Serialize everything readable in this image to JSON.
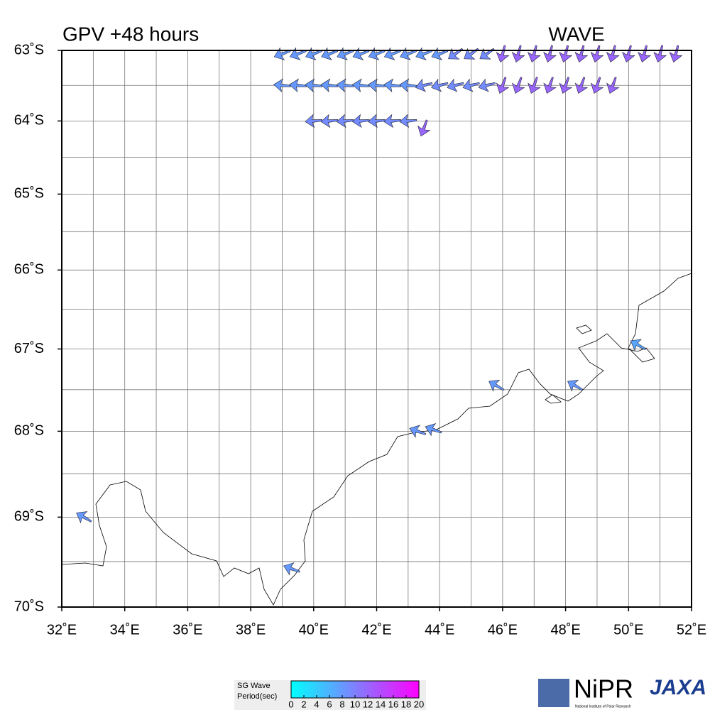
{
  "header": {
    "title": "GPV +48 hours",
    "label": "WAVE"
  },
  "map": {
    "xlim": [
      32,
      52
    ],
    "ylim": [
      -70,
      -63
    ],
    "xticks": [
      {
        "value": 32,
        "label": "32˚E"
      },
      {
        "value": 34,
        "label": "34˚E"
      },
      {
        "value": 36,
        "label": "36˚E"
      },
      {
        "value": 38,
        "label": "38˚E"
      },
      {
        "value": 40,
        "label": "40˚E"
      },
      {
        "value": 42,
        "label": "42˚E"
      },
      {
        "value": 44,
        "label": "44˚E"
      },
      {
        "value": 46,
        "label": "46˚E"
      },
      {
        "value": 48,
        "label": "48˚E"
      },
      {
        "value": 50,
        "label": "50˚E"
      },
      {
        "value": 52,
        "label": "52˚E"
      }
    ],
    "yticks": [
      {
        "value": -63,
        "label": "63˚S"
      },
      {
        "value": -64,
        "label": "64˚S"
      },
      {
        "value": -65,
        "label": "65˚S"
      },
      {
        "value": -66,
        "label": "66˚S"
      },
      {
        "value": -67,
        "label": "67˚S"
      },
      {
        "value": -68,
        "label": "68˚S"
      },
      {
        "value": -69,
        "label": "69˚S"
      },
      {
        "value": -70,
        "label": "70˚S"
      }
    ],
    "xgrid": [
      33,
      34,
      35,
      36,
      37,
      38,
      39,
      40,
      41,
      42,
      43,
      44,
      45,
      46,
      47,
      48,
      49,
      50,
      51
    ],
    "ygrid": [
      -69.5,
      -69,
      -68.5,
      -68,
      -67.5,
      -67,
      -66.5,
      -66,
      -65.5,
      -65,
      -64.5,
      -64,
      -63.5
    ],
    "arrows": [
      {
        "lon": 39.0,
        "lat": -63.05,
        "dir": 250,
        "period": 8
      },
      {
        "lon": 39.5,
        "lat": -63.05,
        "dir": 250,
        "period": 8
      },
      {
        "lon": 40.0,
        "lat": -63.05,
        "dir": 250,
        "period": 8
      },
      {
        "lon": 40.5,
        "lat": -63.05,
        "dir": 250,
        "period": 8
      },
      {
        "lon": 41.0,
        "lat": -63.05,
        "dir": 250,
        "period": 8
      },
      {
        "lon": 41.5,
        "lat": -63.05,
        "dir": 250,
        "period": 8
      },
      {
        "lon": 42.0,
        "lat": -63.05,
        "dir": 250,
        "period": 8
      },
      {
        "lon": 42.5,
        "lat": -63.05,
        "dir": 250,
        "period": 8
      },
      {
        "lon": 43.0,
        "lat": -63.05,
        "dir": 250,
        "period": 8
      },
      {
        "lon": 43.5,
        "lat": -63.05,
        "dir": 250,
        "period": 8
      },
      {
        "lon": 44.0,
        "lat": -63.05,
        "dir": 250,
        "period": 8
      },
      {
        "lon": 44.5,
        "lat": -63.05,
        "dir": 235,
        "period": 9
      },
      {
        "lon": 45.0,
        "lat": -63.05,
        "dir": 235,
        "period": 9
      },
      {
        "lon": 45.5,
        "lat": -63.05,
        "dir": 235,
        "period": 9
      },
      {
        "lon": 46.0,
        "lat": -63.05,
        "dir": 195,
        "period": 12
      },
      {
        "lon": 46.5,
        "lat": -63.05,
        "dir": 195,
        "period": 12
      },
      {
        "lon": 47.0,
        "lat": -63.05,
        "dir": 195,
        "period": 12
      },
      {
        "lon": 47.5,
        "lat": -63.05,
        "dir": 195,
        "period": 12
      },
      {
        "lon": 48.0,
        "lat": -63.05,
        "dir": 195,
        "period": 12
      },
      {
        "lon": 48.5,
        "lat": -63.05,
        "dir": 195,
        "period": 12
      },
      {
        "lon": 49.0,
        "lat": -63.05,
        "dir": 195,
        "period": 12
      },
      {
        "lon": 49.5,
        "lat": -63.05,
        "dir": 195,
        "period": 12
      },
      {
        "lon": 50.0,
        "lat": -63.05,
        "dir": 195,
        "period": 12
      },
      {
        "lon": 50.5,
        "lat": -63.05,
        "dir": 195,
        "period": 12
      },
      {
        "lon": 51.0,
        "lat": -63.05,
        "dir": 195,
        "period": 12
      },
      {
        "lon": 51.5,
        "lat": -63.05,
        "dir": 195,
        "period": 12
      },
      {
        "lon": 39.0,
        "lat": -63.5,
        "dir": 275,
        "period": 8
      },
      {
        "lon": 39.5,
        "lat": -63.5,
        "dir": 275,
        "period": 8
      },
      {
        "lon": 40.0,
        "lat": -63.5,
        "dir": 275,
        "period": 8
      },
      {
        "lon": 40.5,
        "lat": -63.5,
        "dir": 275,
        "period": 8
      },
      {
        "lon": 41.0,
        "lat": -63.5,
        "dir": 275,
        "period": 8
      },
      {
        "lon": 41.5,
        "lat": -63.5,
        "dir": 275,
        "period": 8
      },
      {
        "lon": 42.0,
        "lat": -63.5,
        "dir": 275,
        "period": 8
      },
      {
        "lon": 42.5,
        "lat": -63.5,
        "dir": 275,
        "period": 8
      },
      {
        "lon": 43.0,
        "lat": -63.5,
        "dir": 275,
        "period": 8
      },
      {
        "lon": 43.5,
        "lat": -63.5,
        "dir": 255,
        "period": 9
      },
      {
        "lon": 44.0,
        "lat": -63.5,
        "dir": 255,
        "period": 9
      },
      {
        "lon": 44.5,
        "lat": -63.5,
        "dir": 255,
        "period": 9
      },
      {
        "lon": 45.0,
        "lat": -63.5,
        "dir": 255,
        "period": 9
      },
      {
        "lon": 45.5,
        "lat": -63.5,
        "dir": 255,
        "period": 9
      },
      {
        "lon": 46.0,
        "lat": -63.5,
        "dir": 200,
        "period": 12
      },
      {
        "lon": 46.5,
        "lat": -63.5,
        "dir": 200,
        "period": 12
      },
      {
        "lon": 47.0,
        "lat": -63.5,
        "dir": 200,
        "period": 12
      },
      {
        "lon": 47.5,
        "lat": -63.5,
        "dir": 200,
        "period": 12
      },
      {
        "lon": 48.0,
        "lat": -63.5,
        "dir": 200,
        "period": 12
      },
      {
        "lon": 48.5,
        "lat": -63.5,
        "dir": 200,
        "period": 12
      },
      {
        "lon": 49.0,
        "lat": -63.5,
        "dir": 200,
        "period": 12
      },
      {
        "lon": 49.5,
        "lat": -63.5,
        "dir": 200,
        "period": 12
      },
      {
        "lon": 40.0,
        "lat": -64.0,
        "dir": 265,
        "period": 9
      },
      {
        "lon": 40.5,
        "lat": -64.0,
        "dir": 265,
        "period": 9
      },
      {
        "lon": 41.0,
        "lat": -64.0,
        "dir": 265,
        "period": 9
      },
      {
        "lon": 41.5,
        "lat": -64.0,
        "dir": 265,
        "period": 9
      },
      {
        "lon": 42.0,
        "lat": -64.0,
        "dir": 265,
        "period": 9
      },
      {
        "lon": 42.5,
        "lat": -64.0,
        "dir": 265,
        "period": 9
      },
      {
        "lon": 43.0,
        "lat": -64.0,
        "dir": 265,
        "period": 9
      },
      {
        "lon": 43.5,
        "lat": -64.1,
        "dir": 200,
        "period": 12
      },
      {
        "lon": 32.7,
        "lat": -69.0,
        "dir": 300,
        "period": 8
      },
      {
        "lon": 39.3,
        "lat": -69.58,
        "dir": 290,
        "period": 8
      },
      {
        "lon": 43.3,
        "lat": -68.0,
        "dir": 290,
        "period": 8
      },
      {
        "lon": 43.8,
        "lat": -67.98,
        "dir": 290,
        "period": 8
      },
      {
        "lon": 45.8,
        "lat": -67.45,
        "dir": 300,
        "period": 8
      },
      {
        "lon": 48.3,
        "lat": -67.45,
        "dir": 300,
        "period": 8
      },
      {
        "lon": 50.3,
        "lat": -66.95,
        "dir": 300,
        "period": 7
      }
    ]
  },
  "colorbar": {
    "title": "SG Wave",
    "subtitle": "Period(sec)",
    "lim": [
      0,
      20
    ],
    "ticks": [
      0,
      2,
      4,
      6,
      8,
      10,
      12,
      14,
      16,
      18,
      20
    ]
  },
  "logos": {
    "nipr": "NiPR",
    "nipr_full": "National Institute of Polar Research",
    "jaxa": "JAXA"
  }
}
